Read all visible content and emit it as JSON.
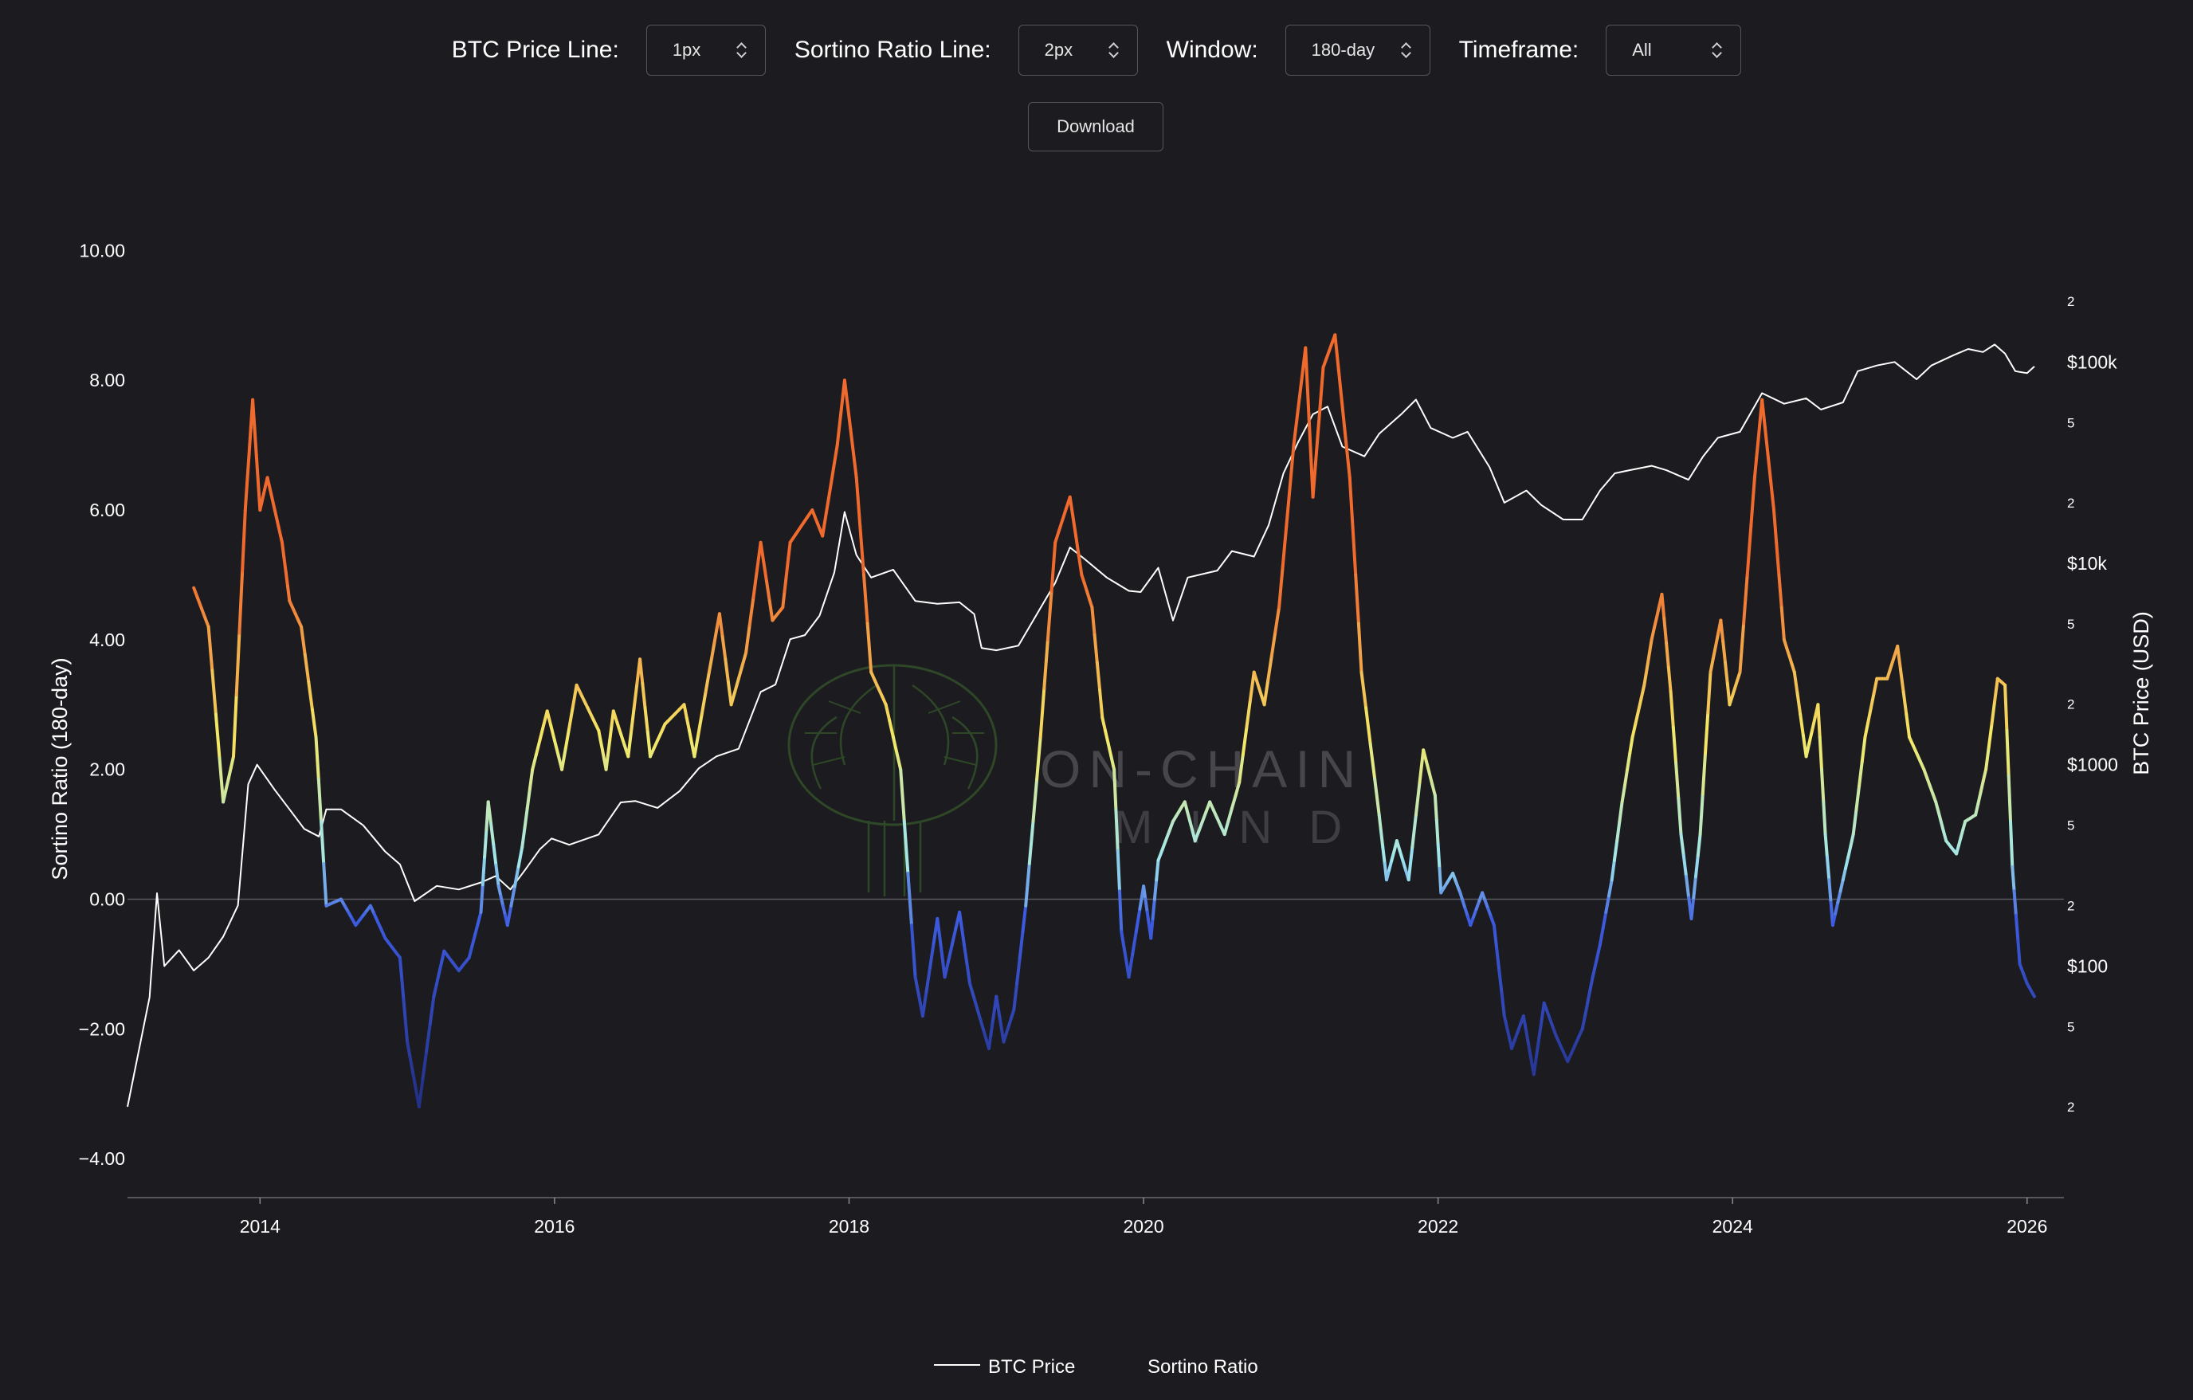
{
  "controls": {
    "price_line": {
      "label": "BTC Price Line:",
      "value": "1px"
    },
    "sortino_line": {
      "label": "Sortino Ratio Line:",
      "value": "2px"
    },
    "window": {
      "label": "Window:",
      "value": "180-day"
    },
    "timeframe": {
      "label": "Timeframe:",
      "value": "All"
    },
    "download_label": "Download"
  },
  "watermark": {
    "line1": "ON-CHAIN",
    "line2": "MIND"
  },
  "colors": {
    "background": "#1b1b20",
    "price_line": "#ffffff",
    "sortino_high": "#f06a2e",
    "sortino_mid": "#f4e865",
    "sortino_zero": "#9ee6f0",
    "sortino_neg": "#3d5be0",
    "sortino_low": "#1f2a7a"
  },
  "chart_data": {
    "type": "line",
    "xlabel": "",
    "ylabel_left": "Sortino Ratio (180-day)",
    "ylabel_right": "BTC Price (USD)",
    "x_range": [
      2013.1,
      2026.25
    ],
    "ylim_left": [
      -4.6,
      10.3
    ],
    "ylim_right_log10": [
      0.85,
      5.65
    ],
    "x_ticks": [
      "2014",
      "2016",
      "2018",
      "2020",
      "2022",
      "2024",
      "2026"
    ],
    "y_left_ticks": [
      "10.00",
      "8.00",
      "6.00",
      "4.00",
      "2.00",
      "0.00",
      "−2.00",
      "−4.00"
    ],
    "y_right_major_ticks": [
      {
        "label": "$100k",
        "log10": 5
      },
      {
        "label": "$10k",
        "log10": 4
      },
      {
        "label": "$1000",
        "log10": 3
      },
      {
        "label": "$100",
        "log10": 2
      }
    ],
    "y_right_minor_ticks": [
      {
        "label": "2",
        "log10": 5.301
      },
      {
        "label": "5",
        "log10": 4.699
      },
      {
        "label": "2",
        "log10": 4.301
      },
      {
        "label": "5",
        "log10": 3.699
      },
      {
        "label": "2",
        "log10": 3.301
      },
      {
        "label": "5",
        "log10": 2.699
      },
      {
        "label": "2",
        "log10": 2.301
      },
      {
        "label": "5",
        "log10": 1.699
      },
      {
        "label": "2",
        "log10": 1.301
      }
    ],
    "grid": false,
    "legend_position": "bottom-center",
    "series": [
      {
        "name": "BTC Price",
        "axis": "right-log",
        "points": [
          [
            2013.1,
            20
          ],
          [
            2013.25,
            70
          ],
          [
            2013.3,
            230
          ],
          [
            2013.35,
            100
          ],
          [
            2013.45,
            120
          ],
          [
            2013.55,
            95
          ],
          [
            2013.65,
            110
          ],
          [
            2013.75,
            140
          ],
          [
            2013.85,
            200
          ],
          [
            2013.92,
            800
          ],
          [
            2013.98,
            1000
          ],
          [
            2014.1,
            750
          ],
          [
            2014.2,
            600
          ],
          [
            2014.3,
            480
          ],
          [
            2014.4,
            440
          ],
          [
            2014.45,
            600
          ],
          [
            2014.55,
            600
          ],
          [
            2014.7,
            500
          ],
          [
            2014.85,
            370
          ],
          [
            2014.95,
            320
          ],
          [
            2015.05,
            210
          ],
          [
            2015.2,
            250
          ],
          [
            2015.35,
            240
          ],
          [
            2015.5,
            260
          ],
          [
            2015.6,
            280
          ],
          [
            2015.7,
            240
          ],
          [
            2015.8,
            300
          ],
          [
            2015.9,
            380
          ],
          [
            2015.98,
            430
          ],
          [
            2016.1,
            400
          ],
          [
            2016.3,
            450
          ],
          [
            2016.45,
            650
          ],
          [
            2016.55,
            660
          ],
          [
            2016.7,
            610
          ],
          [
            2016.85,
            740
          ],
          [
            2016.98,
            960
          ],
          [
            2017.1,
            1100
          ],
          [
            2017.25,
            1200
          ],
          [
            2017.4,
            2300
          ],
          [
            2017.5,
            2500
          ],
          [
            2017.6,
            4200
          ],
          [
            2017.7,
            4400
          ],
          [
            2017.8,
            5500
          ],
          [
            2017.9,
            9000
          ],
          [
            2017.97,
            18000
          ],
          [
            2018.05,
            11000
          ],
          [
            2018.15,
            8500
          ],
          [
            2018.3,
            9300
          ],
          [
            2018.45,
            6500
          ],
          [
            2018.6,
            6300
          ],
          [
            2018.75,
            6400
          ],
          [
            2018.85,
            5600
          ],
          [
            2018.9,
            3800
          ],
          [
            2019.0,
            3700
          ],
          [
            2019.15,
            3900
          ],
          [
            2019.25,
            5200
          ],
          [
            2019.4,
            8000
          ],
          [
            2019.5,
            12000
          ],
          [
            2019.6,
            10500
          ],
          [
            2019.75,
            8500
          ],
          [
            2019.9,
            7300
          ],
          [
            2019.98,
            7200
          ],
          [
            2020.1,
            9500
          ],
          [
            2020.2,
            5200
          ],
          [
            2020.3,
            8500
          ],
          [
            2020.5,
            9200
          ],
          [
            2020.6,
            11500
          ],
          [
            2020.75,
            10800
          ],
          [
            2020.85,
            15500
          ],
          [
            2020.95,
            28000
          ],
          [
            2021.05,
            40000
          ],
          [
            2021.15,
            55000
          ],
          [
            2021.25,
            60000
          ],
          [
            2021.35,
            38000
          ],
          [
            2021.5,
            34000
          ],
          [
            2021.6,
            44000
          ],
          [
            2021.75,
            55000
          ],
          [
            2021.85,
            65000
          ],
          [
            2021.95,
            47000
          ],
          [
            2022.1,
            42000
          ],
          [
            2022.2,
            45000
          ],
          [
            2022.35,
            30000
          ],
          [
            2022.45,
            20000
          ],
          [
            2022.6,
            23000
          ],
          [
            2022.7,
            19500
          ],
          [
            2022.85,
            16500
          ],
          [
            2022.98,
            16500
          ],
          [
            2023.1,
            23000
          ],
          [
            2023.2,
            28000
          ],
          [
            2023.3,
            29000
          ],
          [
            2023.45,
            30500
          ],
          [
            2023.55,
            29000
          ],
          [
            2023.7,
            26000
          ],
          [
            2023.8,
            34000
          ],
          [
            2023.9,
            42000
          ],
          [
            2024.05,
            45000
          ],
          [
            2024.2,
            70000
          ],
          [
            2024.35,
            62000
          ],
          [
            2024.5,
            66000
          ],
          [
            2024.6,
            58000
          ],
          [
            2024.75,
            63000
          ],
          [
            2024.85,
            90000
          ],
          [
            2024.98,
            96000
          ],
          [
            2025.1,
            100000
          ],
          [
            2025.25,
            82000
          ],
          [
            2025.35,
            96000
          ],
          [
            2025.5,
            108000
          ],
          [
            2025.6,
            116000
          ],
          [
            2025.7,
            112000
          ],
          [
            2025.78,
            122000
          ],
          [
            2025.85,
            110000
          ],
          [
            2025.92,
            90000
          ],
          [
            2026.0,
            88000
          ],
          [
            2026.05,
            95000
          ]
        ]
      },
      {
        "name": "Sortino Ratio",
        "axis": "left",
        "points": [
          [
            2013.55,
            4.8
          ],
          [
            2013.65,
            4.2
          ],
          [
            2013.75,
            1.5
          ],
          [
            2013.82,
            2.2
          ],
          [
            2013.9,
            6.0
          ],
          [
            2013.95,
            7.7
          ],
          [
            2014.0,
            6.0
          ],
          [
            2014.05,
            6.5
          ],
          [
            2014.15,
            5.5
          ],
          [
            2014.2,
            4.6
          ],
          [
            2014.28,
            4.2
          ],
          [
            2014.38,
            2.5
          ],
          [
            2014.45,
            -0.1
          ],
          [
            2014.55,
            0.0
          ],
          [
            2014.65,
            -0.4
          ],
          [
            2014.75,
            -0.1
          ],
          [
            2014.85,
            -0.6
          ],
          [
            2014.95,
            -0.9
          ],
          [
            2015.0,
            -2.2
          ],
          [
            2015.08,
            -3.2
          ],
          [
            2015.18,
            -1.5
          ],
          [
            2015.25,
            -0.8
          ],
          [
            2015.35,
            -1.1
          ],
          [
            2015.42,
            -0.9
          ],
          [
            2015.5,
            -0.2
          ],
          [
            2015.55,
            1.5
          ],
          [
            2015.62,
            0.2
          ],
          [
            2015.68,
            -0.4
          ],
          [
            2015.78,
            0.8
          ],
          [
            2015.85,
            2.0
          ],
          [
            2015.95,
            2.9
          ],
          [
            2016.05,
            2.0
          ],
          [
            2016.15,
            3.3
          ],
          [
            2016.3,
            2.6
          ],
          [
            2016.35,
            2.0
          ],
          [
            2016.4,
            2.9
          ],
          [
            2016.5,
            2.2
          ],
          [
            2016.58,
            3.7
          ],
          [
            2016.65,
            2.2
          ],
          [
            2016.75,
            2.7
          ],
          [
            2016.88,
            3.0
          ],
          [
            2016.95,
            2.2
          ],
          [
            2017.05,
            3.5
          ],
          [
            2017.12,
            4.4
          ],
          [
            2017.2,
            3.0
          ],
          [
            2017.3,
            3.8
          ],
          [
            2017.4,
            5.5
          ],
          [
            2017.48,
            4.3
          ],
          [
            2017.55,
            4.5
          ],
          [
            2017.6,
            5.5
          ],
          [
            2017.75,
            6.0
          ],
          [
            2017.82,
            5.6
          ],
          [
            2017.92,
            7.0
          ],
          [
            2017.97,
            8.0
          ],
          [
            2018.05,
            6.5
          ],
          [
            2018.15,
            3.5
          ],
          [
            2018.25,
            3.0
          ],
          [
            2018.35,
            2.0
          ],
          [
            2018.45,
            -1.2
          ],
          [
            2018.5,
            -1.8
          ],
          [
            2018.6,
            -0.3
          ],
          [
            2018.65,
            -1.2
          ],
          [
            2018.75,
            -0.2
          ],
          [
            2018.82,
            -1.3
          ],
          [
            2018.95,
            -2.3
          ],
          [
            2019.0,
            -1.5
          ],
          [
            2019.05,
            -2.2
          ],
          [
            2019.12,
            -1.7
          ],
          [
            2019.2,
            -0.1
          ],
          [
            2019.3,
            2.5
          ],
          [
            2019.4,
            5.5
          ],
          [
            2019.5,
            6.2
          ],
          [
            2019.58,
            5.0
          ],
          [
            2019.65,
            4.5
          ],
          [
            2019.72,
            2.8
          ],
          [
            2019.8,
            2.0
          ],
          [
            2019.85,
            -0.5
          ],
          [
            2019.9,
            -1.2
          ],
          [
            2020.0,
            0.2
          ],
          [
            2020.05,
            -0.6
          ],
          [
            2020.1,
            0.6
          ],
          [
            2020.2,
            1.2
          ],
          [
            2020.28,
            1.5
          ],
          [
            2020.35,
            0.9
          ],
          [
            2020.45,
            1.5
          ],
          [
            2020.55,
            1.0
          ],
          [
            2020.65,
            1.8
          ],
          [
            2020.75,
            3.5
          ],
          [
            2020.82,
            3.0
          ],
          [
            2020.92,
            4.5
          ],
          [
            2021.02,
            7.0
          ],
          [
            2021.1,
            8.5
          ],
          [
            2021.15,
            6.2
          ],
          [
            2021.22,
            8.2
          ],
          [
            2021.3,
            8.7
          ],
          [
            2021.4,
            6.5
          ],
          [
            2021.48,
            3.5
          ],
          [
            2021.6,
            1.3
          ],
          [
            2021.65,
            0.3
          ],
          [
            2021.72,
            0.9
          ],
          [
            2021.8,
            0.3
          ],
          [
            2021.9,
            2.3
          ],
          [
            2021.98,
            1.6
          ],
          [
            2022.02,
            0.1
          ],
          [
            2022.1,
            0.4
          ],
          [
            2022.15,
            0.1
          ],
          [
            2022.22,
            -0.4
          ],
          [
            2022.3,
            0.1
          ],
          [
            2022.38,
            -0.4
          ],
          [
            2022.45,
            -1.8
          ],
          [
            2022.5,
            -2.3
          ],
          [
            2022.58,
            -1.8
          ],
          [
            2022.65,
            -2.7
          ],
          [
            2022.72,
            -1.6
          ],
          [
            2022.8,
            -2.1
          ],
          [
            2022.88,
            -2.5
          ],
          [
            2022.98,
            -2.0
          ],
          [
            2023.05,
            -1.2
          ],
          [
            2023.1,
            -0.7
          ],
          [
            2023.18,
            0.3
          ],
          [
            2023.25,
            1.5
          ],
          [
            2023.32,
            2.5
          ],
          [
            2023.4,
            3.3
          ],
          [
            2023.45,
            4.0
          ],
          [
            2023.52,
            4.7
          ],
          [
            2023.58,
            3.2
          ],
          [
            2023.65,
            1.0
          ],
          [
            2023.72,
            -0.3
          ],
          [
            2023.78,
            1.0
          ],
          [
            2023.85,
            3.5
          ],
          [
            2023.92,
            4.3
          ],
          [
            2023.98,
            3.0
          ],
          [
            2024.05,
            3.5
          ],
          [
            2024.15,
            6.5
          ],
          [
            2024.2,
            7.7
          ],
          [
            2024.28,
            6.0
          ],
          [
            2024.35,
            4.0
          ],
          [
            2024.42,
            3.5
          ],
          [
            2024.5,
            2.2
          ],
          [
            2024.58,
            3.0
          ],
          [
            2024.63,
            1.0
          ],
          [
            2024.68,
            -0.4
          ],
          [
            2024.75,
            0.3
          ],
          [
            2024.82,
            1.0
          ],
          [
            2024.9,
            2.5
          ],
          [
            2024.98,
            3.4
          ],
          [
            2025.05,
            3.4
          ],
          [
            2025.12,
            3.9
          ],
          [
            2025.2,
            2.5
          ],
          [
            2025.3,
            2.0
          ],
          [
            2025.38,
            1.5
          ],
          [
            2025.45,
            0.9
          ],
          [
            2025.52,
            0.7
          ],
          [
            2025.58,
            1.2
          ],
          [
            2025.65,
            1.3
          ],
          [
            2025.72,
            2.0
          ],
          [
            2025.8,
            3.4
          ],
          [
            2025.85,
            3.3
          ],
          [
            2025.9,
            0.5
          ],
          [
            2025.95,
            -1.0
          ],
          [
            2026.0,
            -1.3
          ],
          [
            2026.05,
            -1.5
          ]
        ]
      }
    ]
  },
  "legend": [
    {
      "label": "BTC Price"
    },
    {
      "label": "Sortino Ratio"
    }
  ]
}
